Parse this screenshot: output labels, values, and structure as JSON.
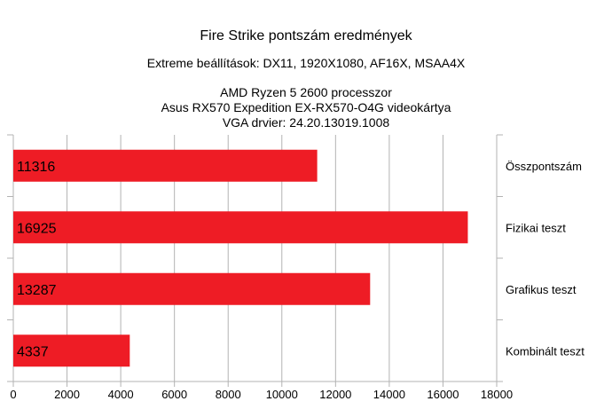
{
  "titles": {
    "main": "Fire Strike pontszám eredmények",
    "subtitle": "Extreme beállítások: DX11, 1920X1080, AF16X, MSAA4X",
    "line_cpu": "AMD Ryzen 5 2600 processzor",
    "line_gpu": "Asus RX570 Expedition EX-RX570-O4G videokártya",
    "line_driver": "VGA drvier: 24.20.13019.1008"
  },
  "chart_data": {
    "type": "bar",
    "orientation": "horizontal",
    "categories": [
      "Összpontszám",
      "Fizikai teszt",
      "Grafikus teszt",
      "Kombinált teszt"
    ],
    "values": [
      11316,
      16925,
      13287,
      4337
    ],
    "xlim": [
      0,
      18000
    ],
    "x_ticks": [
      0,
      2000,
      4000,
      6000,
      8000,
      10000,
      12000,
      14000,
      16000,
      18000
    ],
    "grid": true,
    "bar_color": "#ee1c25",
    "category_labels_position": "right",
    "data_labels_position": "inside-base"
  }
}
